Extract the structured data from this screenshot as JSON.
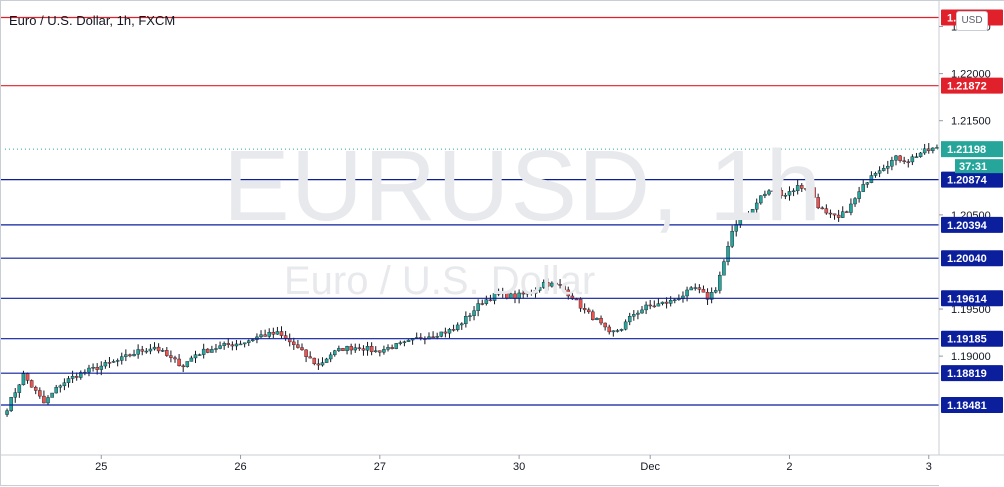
{
  "chart_title": "Euro / U.S. Dollar, 1h, FXCM",
  "currency_button": "USD",
  "watermark": {
    "symbol": "EURUSD, 1h",
    "name": "Euro / U.S. Dollar"
  },
  "colors": {
    "up": "#26a69a",
    "down": "#ef5350",
    "wick": "#131722",
    "resistance_line": "#e0202a",
    "support_line": "#0b1e9c",
    "resistance_badge": "#e0202a",
    "support_badge": "#0b1e9c",
    "current_badge": "#26a69a"
  },
  "chart_data": {
    "type": "candlestick",
    "symbol": "EURUSD",
    "timeframe": "1h",
    "ylim": [
      1.1795,
      1.2275
    ],
    "y_ticks": [
      "1.22500",
      "1.22000",
      "1.21500",
      "1.20500",
      "1.19500",
      "1.19000"
    ],
    "x_ticks": [
      "25",
      "26",
      "27",
      "30",
      "Dec",
      "2",
      "3"
    ],
    "resistance_levels": [
      "1.22596",
      "1.21872"
    ],
    "support_levels": [
      "1.20874",
      "1.20394",
      "1.20040",
      "1.19614",
      "1.19185",
      "1.18819",
      "1.18481"
    ],
    "current_price": "1.21198",
    "countdown": "37:31",
    "price_path": [
      [
        0,
        1.1845
      ],
      [
        4,
        1.188
      ],
      [
        9,
        1.185
      ],
      [
        13,
        1.187
      ],
      [
        17,
        1.188
      ],
      [
        22,
        1.1888
      ],
      [
        27,
        1.1895
      ],
      [
        32,
        1.1905
      ],
      [
        36,
        1.191
      ],
      [
        40,
        1.1897
      ],
      [
        43,
        1.189
      ],
      [
        46,
        1.1902
      ],
      [
        50,
        1.1908
      ],
      [
        54,
        1.1912
      ],
      [
        58,
        1.1915
      ],
      [
        62,
        1.1922
      ],
      [
        66,
        1.1924
      ],
      [
        70,
        1.1912
      ],
      [
        73,
        1.19
      ],
      [
        76,
        1.189
      ],
      [
        79,
        1.1902
      ],
      [
        82,
        1.1908
      ],
      [
        86,
        1.191
      ],
      [
        90,
        1.1905
      ],
      [
        94,
        1.191
      ],
      [
        97,
        1.1913
      ],
      [
        101,
        1.192
      ],
      [
        105,
        1.1924
      ],
      [
        109,
        1.1928
      ],
      [
        112,
        1.194
      ],
      [
        116,
        1.1958
      ],
      [
        120,
        1.1966
      ],
      [
        124,
        1.1963
      ],
      [
        128,
        1.1968
      ],
      [
        131,
        1.1978
      ],
      [
        135,
        1.1974
      ],
      [
        138,
        1.1963
      ],
      [
        141,
        1.1948
      ],
      [
        144,
        1.1938
      ],
      [
        147,
        1.1923
      ],
      [
        150,
        1.193
      ],
      [
        153,
        1.1945
      ],
      [
        156,
        1.1952
      ],
      [
        159,
        1.1955
      ],
      [
        162,
        1.1958
      ],
      [
        165,
        1.1965
      ],
      [
        168,
        1.1972
      ],
      [
        171,
        1.1962
      ],
      [
        173,
        1.1972
      ],
      [
        175,
        1.2
      ],
      [
        177,
        1.203
      ],
      [
        179,
        1.205
      ],
      [
        182,
        1.2055
      ],
      [
        184,
        1.207
      ],
      [
        187,
        1.2076
      ],
      [
        190,
        1.2072
      ],
      [
        193,
        1.208
      ],
      [
        196,
        1.2078
      ],
      [
        198,
        1.206
      ],
      [
        200,
        1.205
      ],
      [
        203,
        1.2046
      ],
      [
        206,
        1.206
      ],
      [
        209,
        1.208
      ],
      [
        211,
        1.2094
      ],
      [
        214,
        1.2102
      ],
      [
        217,
        1.211
      ],
      [
        220,
        1.2108
      ],
      [
        223,
        1.2116
      ],
      [
        226,
        1.212
      ],
      [
        228,
        1.212
      ]
    ]
  }
}
